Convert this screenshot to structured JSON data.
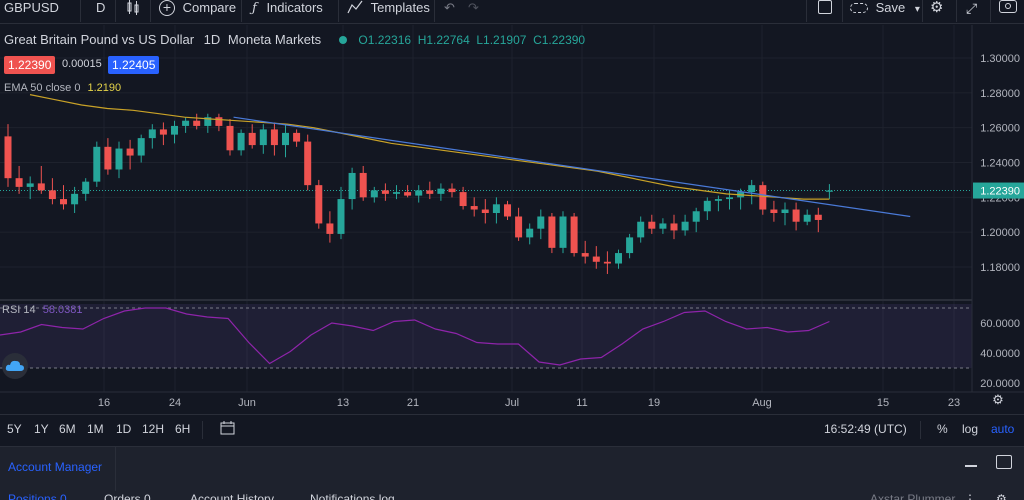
{
  "toolbar": {
    "symbol": "GBPUSD",
    "interval": "D",
    "compare_label": "Compare",
    "indicators_label": "Indicators",
    "templates_label": "Templates",
    "save_label": "Save"
  },
  "legend": {
    "title": "Great Britain Pound vs US Dollar",
    "interval": "1D",
    "source": "Moneta Markets",
    "open": "O1.22316",
    "high": "H1.22764",
    "low": "L1.21907",
    "close": "C1.22390",
    "bid": "1.22390",
    "spread": "0.00015",
    "ask": "1.22405",
    "ema_label": "EMA 50 close 0",
    "ema_value": "1.2190",
    "rsi_label": "RSI 14",
    "rsi_value": "58.0381"
  },
  "price_axis": {
    "ticks": [
      "1.30000",
      "1.28000",
      "1.26000",
      "1.24000",
      "1.22000",
      "1.20000",
      "1.18000"
    ],
    "last_price": "1.22390"
  },
  "rsi_axis": {
    "ticks": [
      "60.0000",
      "40.0000",
      "20.0000"
    ]
  },
  "time_axis": {
    "ticks": [
      "16",
      "24",
      "Jun",
      "13",
      "21",
      "Jul",
      "11",
      "19",
      "Aug",
      "15",
      "23"
    ]
  },
  "bottom_bar": {
    "ranges": [
      "5Y",
      "1Y",
      "6M",
      "1M",
      "1D",
      "12H",
      "6H"
    ],
    "clock": "16:52:49 (UTC)",
    "percent": "%",
    "log": "log",
    "auto": "auto"
  },
  "panel": {
    "title": "Account Manager",
    "tabs": [
      "Positions 0",
      "Orders 0",
      "Account History",
      "Notifications log"
    ],
    "account": "Axstar Plummer"
  },
  "colors": {
    "up": "#26a69a",
    "down": "#ef5350",
    "ema": "#c9a227",
    "trend": "#2962ff",
    "rsi": "#7e57c2",
    "accent": "#2962ff"
  },
  "chart_data": {
    "type": "candlestick",
    "title": "Great Britain Pound vs US Dollar",
    "interval": "1D",
    "y_range": [
      1.165,
      1.31
    ],
    "candles": [
      [
        1.255,
        1.262,
        1.226,
        1.231
      ],
      [
        1.231,
        1.238,
        1.222,
        1.226
      ],
      [
        1.226,
        1.232,
        1.219,
        1.228
      ],
      [
        1.228,
        1.238,
        1.222,
        1.224
      ],
      [
        1.224,
        1.231,
        1.216,
        1.219
      ],
      [
        1.219,
        1.227,
        1.213,
        1.216
      ],
      [
        1.216,
        1.226,
        1.211,
        1.222
      ],
      [
        1.222,
        1.231,
        1.218,
        1.229
      ],
      [
        1.229,
        1.252,
        1.226,
        1.249
      ],
      [
        1.249,
        1.254,
        1.233,
        1.236
      ],
      [
        1.236,
        1.252,
        1.231,
        1.248
      ],
      [
        1.248,
        1.253,
        1.236,
        1.244
      ],
      [
        1.244,
        1.256,
        1.24,
        1.254
      ],
      [
        1.254,
        1.262,
        1.248,
        1.259
      ],
      [
        1.259,
        1.263,
        1.25,
        1.256
      ],
      [
        1.256,
        1.264,
        1.251,
        1.261
      ],
      [
        1.261,
        1.266,
        1.257,
        1.264
      ],
      [
        1.264,
        1.268,
        1.259,
        1.261
      ],
      [
        1.261,
        1.268,
        1.257,
        1.266
      ],
      [
        1.266,
        1.268,
        1.258,
        1.261
      ],
      [
        1.261,
        1.265,
        1.244,
        1.247
      ],
      [
        1.247,
        1.259,
        1.244,
        1.257
      ],
      [
        1.257,
        1.262,
        1.248,
        1.25
      ],
      [
        1.25,
        1.262,
        1.245,
        1.259
      ],
      [
        1.259,
        1.263,
        1.244,
        1.25
      ],
      [
        1.25,
        1.262,
        1.243,
        1.257
      ],
      [
        1.257,
        1.259,
        1.249,
        1.252
      ],
      [
        1.252,
        1.256,
        1.224,
        1.227
      ],
      [
        1.227,
        1.23,
        1.202,
        1.205
      ],
      [
        1.205,
        1.212,
        1.194,
        1.199
      ],
      [
        1.199,
        1.226,
        1.196,
        1.219
      ],
      [
        1.219,
        1.237,
        1.213,
        1.234
      ],
      [
        1.234,
        1.238,
        1.218,
        1.22
      ],
      [
        1.22,
        1.226,
        1.217,
        1.224
      ],
      [
        1.224,
        1.228,
        1.218,
        1.222
      ],
      [
        1.222,
        1.227,
        1.219,
        1.223
      ],
      [
        1.223,
        1.227,
        1.22,
        1.221
      ],
      [
        1.221,
        1.227,
        1.217,
        1.224
      ],
      [
        1.224,
        1.229,
        1.219,
        1.222
      ],
      [
        1.222,
        1.228,
        1.218,
        1.225
      ],
      [
        1.225,
        1.228,
        1.22,
        1.223
      ],
      [
        1.223,
        1.226,
        1.213,
        1.215
      ],
      [
        1.215,
        1.22,
        1.209,
        1.213
      ],
      [
        1.213,
        1.219,
        1.205,
        1.211
      ],
      [
        1.211,
        1.22,
        1.205,
        1.216
      ],
      [
        1.216,
        1.218,
        1.207,
        1.209
      ],
      [
        1.209,
        1.214,
        1.195,
        1.197
      ],
      [
        1.197,
        1.205,
        1.193,
        1.202
      ],
      [
        1.202,
        1.213,
        1.196,
        1.209
      ],
      [
        1.209,
        1.211,
        1.188,
        1.191
      ],
      [
        1.191,
        1.212,
        1.188,
        1.209
      ],
      [
        1.209,
        1.211,
        1.186,
        1.188
      ],
      [
        1.188,
        1.195,
        1.182,
        1.186
      ],
      [
        1.186,
        1.192,
        1.179,
        1.183
      ],
      [
        1.183,
        1.189,
        1.176,
        1.182
      ],
      [
        1.182,
        1.19,
        1.179,
        1.188
      ],
      [
        1.188,
        1.199,
        1.185,
        1.197
      ],
      [
        1.197,
        1.209,
        1.194,
        1.206
      ],
      [
        1.206,
        1.21,
        1.199,
        1.202
      ],
      [
        1.202,
        1.208,
        1.199,
        1.205
      ],
      [
        1.205,
        1.21,
        1.196,
        1.201
      ],
      [
        1.201,
        1.21,
        1.198,
        1.206
      ],
      [
        1.206,
        1.214,
        1.2,
        1.212
      ],
      [
        1.212,
        1.22,
        1.207,
        1.218
      ],
      [
        1.218,
        1.221,
        1.212,
        1.219
      ],
      [
        1.219,
        1.224,
        1.213,
        1.22
      ],
      [
        1.22,
        1.225,
        1.213,
        1.223
      ],
      [
        1.223,
        1.23,
        1.216,
        1.227
      ],
      [
        1.227,
        1.229,
        1.21,
        1.213
      ],
      [
        1.213,
        1.218,
        1.206,
        1.211
      ],
      [
        1.211,
        1.217,
        1.204,
        1.213
      ],
      [
        1.213,
        1.217,
        1.201,
        1.206
      ],
      [
        1.206,
        1.213,
        1.204,
        1.21
      ],
      [
        1.21,
        1.214,
        1.2,
        1.207
      ],
      [
        1.2232,
        1.2276,
        1.2191,
        1.2239
      ]
    ],
    "ema50": [
      1.279,
      1.276,
      1.273,
      1.271,
      1.27,
      1.268,
      1.266,
      1.265,
      1.264,
      1.263,
      1.262,
      1.26,
      1.257,
      1.254,
      1.251,
      1.249,
      1.247,
      1.245,
      1.243,
      1.241,
      1.239,
      1.237,
      1.235,
      1.232,
      1.229,
      1.226,
      1.224,
      1.222,
      1.221,
      1.22,
      1.219,
      1.219
    ],
    "trendline": [
      [
        1.266,
        0.23
      ],
      [
        1.209,
        0.885
      ]
    ],
    "rsi": [
      52,
      54,
      59,
      57,
      56,
      63,
      68,
      70,
      70,
      66,
      64,
      63,
      47,
      33,
      41,
      52,
      60,
      58,
      55,
      61,
      62,
      56,
      53,
      47,
      46,
      46,
      34,
      32,
      36,
      37,
      46,
      56,
      61,
      67,
      68,
      61,
      56,
      57,
      54,
      55,
      61
    ],
    "rsi_levels": [
      70,
      30
    ]
  }
}
